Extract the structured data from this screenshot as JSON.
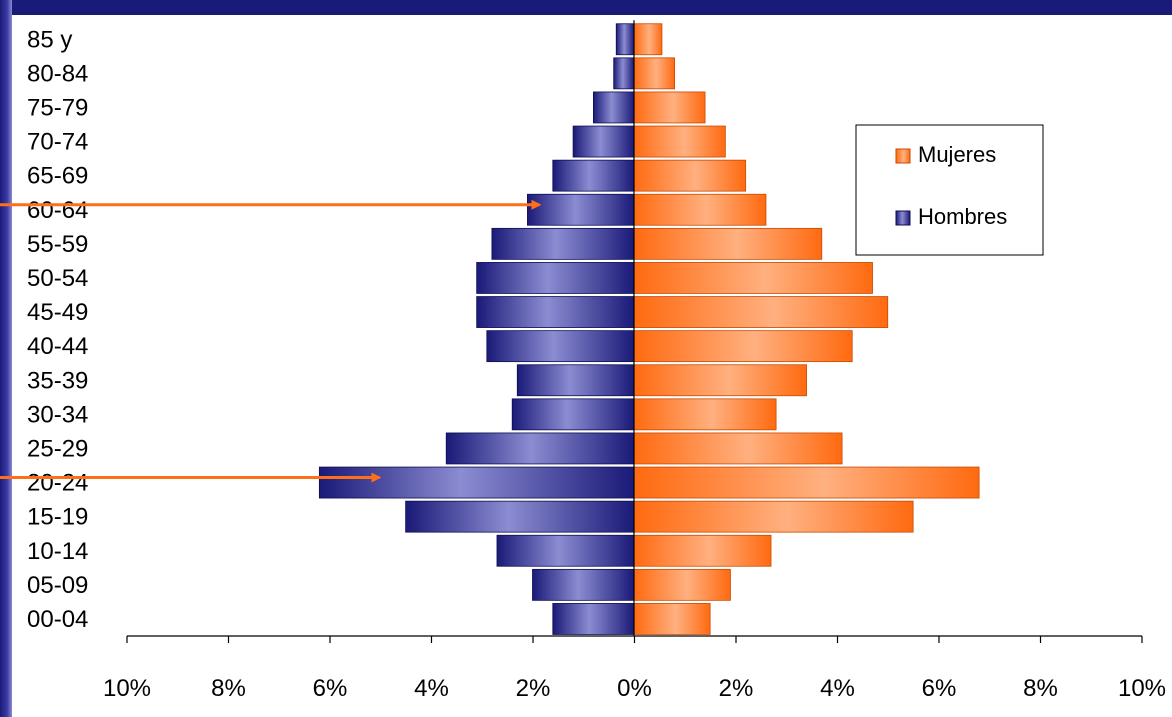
{
  "chart_data": {
    "type": "bar",
    "orientation": "horizontal",
    "categories": [
      "00-04",
      "05-09",
      "10-14",
      "15-19",
      "20-24",
      "25-29",
      "30-34",
      "35-39",
      "40-44",
      "45-49",
      "50-54",
      "55-59",
      "60-64",
      "65-69",
      "70-74",
      "75-79",
      "80-84",
      "85 y"
    ],
    "series": [
      {
        "name": "Mujeres",
        "color": "#ff6f1a",
        "values": [
          1.5,
          1.9,
          2.7,
          5.5,
          6.8,
          4.1,
          2.8,
          3.4,
          4.3,
          5.0,
          4.7,
          3.7,
          2.6,
          2.2,
          1.8,
          1.4,
          0.8,
          0.55
        ]
      },
      {
        "name": "Hombres",
        "color": "#2e2e8c",
        "values": [
          1.6,
          2.0,
          2.7,
          4.5,
          6.2,
          3.7,
          2.4,
          2.3,
          2.9,
          3.1,
          3.1,
          2.8,
          2.1,
          1.6,
          1.2,
          0.8,
          0.4,
          0.35
        ]
      }
    ],
    "x_ticks": [
      "10%",
      "8%",
      "6%",
      "4%",
      "2%",
      "0%",
      "2%",
      "4%",
      "6%",
      "8%",
      "10%"
    ],
    "xlim": [
      -10,
      10
    ],
    "legend": {
      "position": "right",
      "entries": [
        "Mujeres",
        "Hombres"
      ]
    },
    "annotations": [
      {
        "type": "arrow",
        "points_to_category": "60-64",
        "series": "Hombres",
        "color": "#ff6f1a"
      },
      {
        "type": "arrow",
        "points_to_category": "20-24",
        "series": "Hombres",
        "color": "#ff6f1a"
      }
    ]
  }
}
